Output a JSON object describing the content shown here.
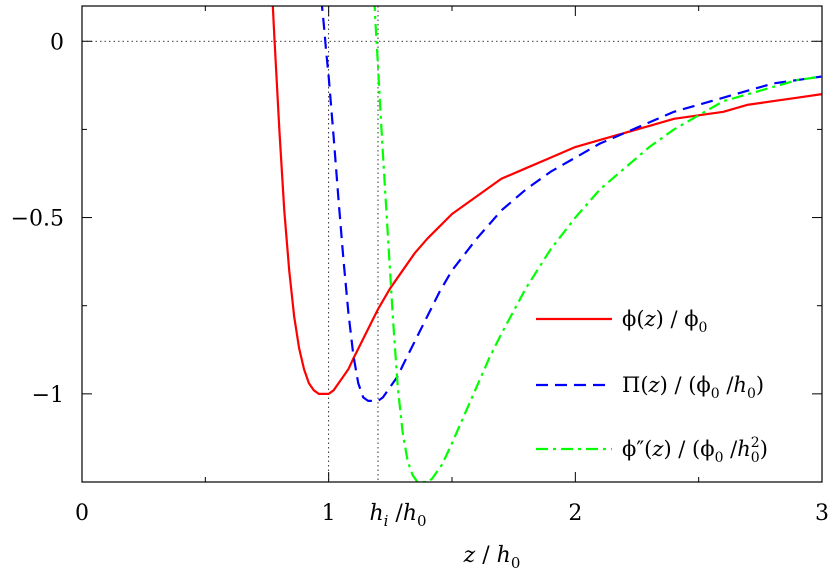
{
  "chart_data": {
    "type": "line",
    "title": "",
    "xlabel": {
      "var": "z",
      "sep": " / ",
      "base": "h",
      "sub": "0"
    },
    "ylabel": "",
    "xlim": [
      0,
      3
    ],
    "ylim": [
      -1.25,
      0.1
    ],
    "x_ticks": [
      {
        "value": 0,
        "label": "0"
      },
      {
        "value": 1,
        "label": "1"
      },
      {
        "value": 2,
        "label": "2"
      },
      {
        "value": 3,
        "label": "3"
      }
    ],
    "x_minor_ticks": [
      0.5,
      1.5,
      2.5
    ],
    "x_special_tick": {
      "value": 1.2,
      "num": "h",
      "num_sub": "i",
      "sep": " /",
      "den": "h",
      "den_sub": "0"
    },
    "y_ticks": [
      {
        "value": 0,
        "label": "0"
      },
      {
        "value": -0.5,
        "label": "−0.5"
      },
      {
        "value": -1,
        "label": "−1"
      }
    ],
    "y_minor_ticks": [
      -0.25,
      -0.75
    ],
    "reference_lines": [
      {
        "orientation": "horizontal",
        "value": 0,
        "style": "dotted"
      },
      {
        "orientation": "vertical",
        "value": 1,
        "style": "dotted"
      },
      {
        "orientation": "vertical",
        "value": 1.2,
        "style": "dotted"
      }
    ],
    "legend_position": "right",
    "series": [
      {
        "color": "#ff0000",
        "dash": "solid",
        "x": [
          0.77,
          0.78,
          0.79,
          0.8,
          0.82,
          0.84,
          0.86,
          0.88,
          0.9,
          0.92,
          0.94,
          0.96,
          0.98,
          1.0,
          1.02,
          1.04,
          1.06,
          1.08,
          1.1,
          1.15,
          1.2,
          1.25,
          1.3,
          1.35,
          1.4,
          1.5,
          1.6,
          1.7,
          1.8,
          1.9,
          2.0,
          2.1,
          2.2,
          2.3,
          2.4,
          2.5,
          2.6,
          2.7,
          2.8,
          2.9,
          3.0
        ],
        "y": [
          0.15,
          0.01,
          -0.12,
          -0.25,
          -0.48,
          -0.65,
          -0.78,
          -0.87,
          -0.93,
          -0.97,
          -0.99,
          -1.0,
          -1.0,
          -1.0,
          -0.99,
          -0.97,
          -0.95,
          -0.93,
          -0.9,
          -0.83,
          -0.76,
          -0.7,
          -0.65,
          -0.6,
          -0.56,
          -0.49,
          -0.44,
          -0.39,
          -0.36,
          -0.33,
          -0.3,
          -0.28,
          -0.26,
          -0.24,
          -0.22,
          -0.21,
          -0.2,
          -0.18,
          -0.17,
          -0.16,
          -0.15
        ]
      },
      {
        "color": "#0000ff",
        "dash": "dashed",
        "x": [
          0.97,
          0.98,
          0.99,
          1.0,
          1.02,
          1.04,
          1.06,
          1.08,
          1.1,
          1.12,
          1.14,
          1.16,
          1.18,
          1.2,
          1.22,
          1.24,
          1.26,
          1.28,
          1.3,
          1.35,
          1.4,
          1.45,
          1.5,
          1.6,
          1.7,
          1.8,
          1.9,
          2.0,
          2.1,
          2.2,
          2.3,
          2.4,
          2.5,
          2.6,
          2.7,
          2.8,
          2.9,
          3.0
        ],
        "y": [
          0.12,
          0.05,
          -0.03,
          -0.1,
          -0.27,
          -0.45,
          -0.62,
          -0.77,
          -0.89,
          -0.97,
          -1.01,
          -1.02,
          -1.02,
          -1.02,
          -1.01,
          -0.99,
          -0.97,
          -0.95,
          -0.92,
          -0.85,
          -0.78,
          -0.71,
          -0.65,
          -0.56,
          -0.48,
          -0.42,
          -0.37,
          -0.33,
          -0.29,
          -0.26,
          -0.23,
          -0.2,
          -0.18,
          -0.16,
          -0.14,
          -0.12,
          -0.11,
          -0.1
        ]
      },
      {
        "color": "#00ff00",
        "dash": "dashdot",
        "x": [
          1.185,
          1.19,
          1.2,
          1.21,
          1.22,
          1.24,
          1.26,
          1.28,
          1.3,
          1.32,
          1.34,
          1.36,
          1.38,
          1.4,
          1.42,
          1.44,
          1.46,
          1.48,
          1.5,
          1.55,
          1.6,
          1.65,
          1.7,
          1.8,
          1.9,
          2.0,
          2.1,
          2.2,
          2.3,
          2.4,
          2.5,
          2.6,
          2.7,
          2.8,
          2.9,
          3.0
        ],
        "y": [
          0.12,
          0.05,
          -0.07,
          -0.2,
          -0.32,
          -0.55,
          -0.78,
          -0.98,
          -1.11,
          -1.19,
          -1.23,
          -1.25,
          -1.25,
          -1.25,
          -1.24,
          -1.22,
          -1.2,
          -1.17,
          -1.14,
          -1.06,
          -0.98,
          -0.9,
          -0.83,
          -0.7,
          -0.59,
          -0.5,
          -0.42,
          -0.36,
          -0.3,
          -0.25,
          -0.21,
          -0.17,
          -0.15,
          -0.13,
          -0.11,
          -0.1
        ]
      }
    ],
    "legend": [
      {
        "num": "ϕ(",
        "num_var": "z",
        "num_close": ") / ϕ",
        "num_sub": "0"
      },
      {
        "num": "Π(",
        "num_var": "z",
        "num_close": ") / (ϕ",
        "num_sub": "0",
        "den_sep": " /",
        "den": "h",
        "den_sub": "0",
        "end": ")"
      },
      {
        "num": "ϕ″(",
        "num_var": "z",
        "num_close": ") / (ϕ",
        "num_sub": "0",
        "den_sep": " /",
        "den": "h",
        "den_sub": "0",
        "den_sup": "2",
        "end": ")"
      }
    ]
  }
}
